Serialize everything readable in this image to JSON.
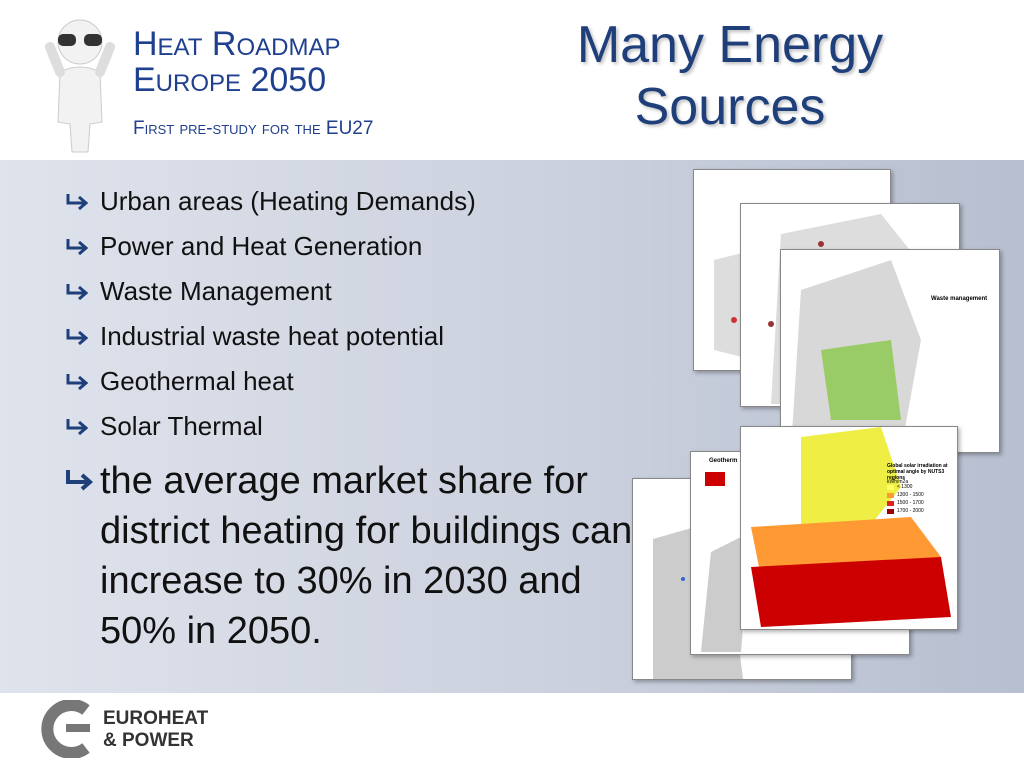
{
  "header": {
    "title_line1": "Heat Roadmap",
    "title_line2": "Europe 2050",
    "subtitle": "First pre-study for the EU27"
  },
  "slide_title": {
    "line1": "Many Energy",
    "line2": "Sources"
  },
  "bullets": [
    "Urban areas (Heating Demands)",
    "Power and Heat Generation",
    "Waste Management",
    "Industrial waste heat potential",
    "Geothermal heat",
    "Solar Thermal"
  ],
  "highlight": "the average market share for district heating for buildings can increase to 30% in 2030 and 50% in 2050.",
  "maps": {
    "waste": {
      "title": "Waste management"
    },
    "geothermal": {
      "title": "Geotherm"
    },
    "solar": {
      "title": "Global solar irradiation at optimal angle by NUTS3 regions",
      "unit": "kWh/m2a",
      "legend": [
        "< 1300",
        "1300 - 1500",
        "1500 - 1700",
        "1700 - 2000"
      ]
    }
  },
  "logo": {
    "line1": "EUROHEAT",
    "line2": "& POWER"
  }
}
